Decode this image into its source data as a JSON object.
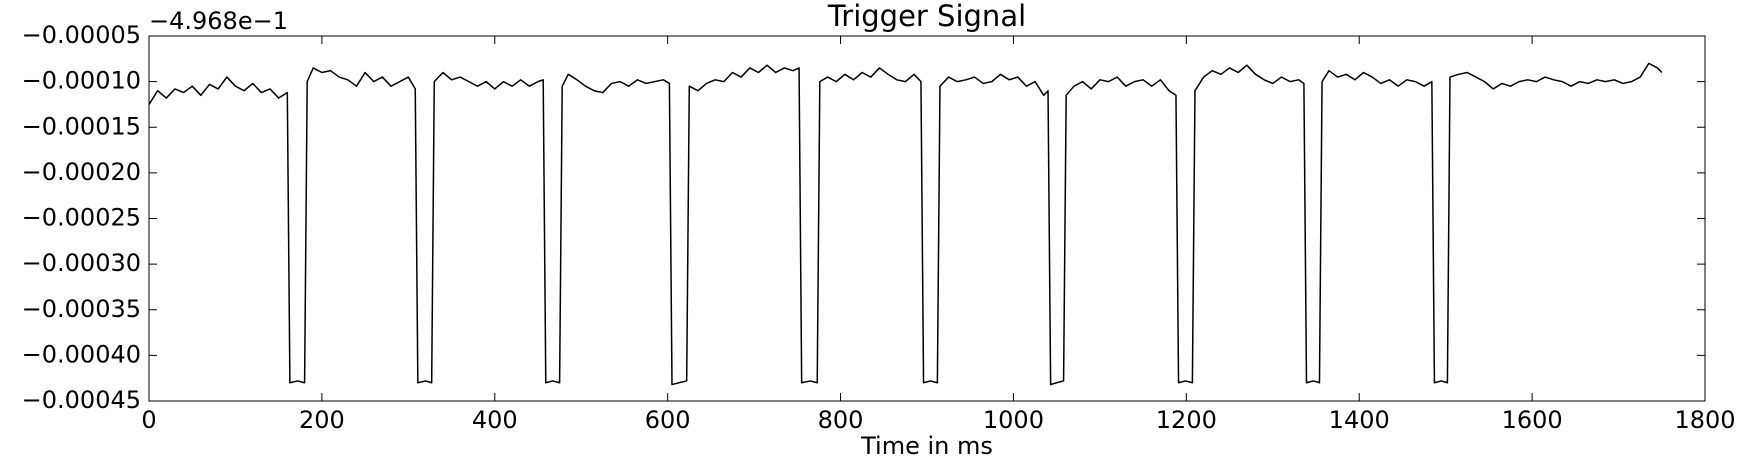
{
  "chart_data": {
    "type": "line",
    "title": "Trigger Signal",
    "xlabel": "Time in ms",
    "offset_label": "−4.968e−1",
    "color": "#000000",
    "xlim": [
      0,
      1800
    ],
    "xticks": [
      0,
      200,
      400,
      600,
      800,
      1000,
      1200,
      1400,
      1600,
      1800
    ],
    "ylim": [
      -0.00045,
      -5e-05
    ],
    "yticks": [
      {
        "value": -0.00045,
        "label": "−0.00045"
      },
      {
        "value": -0.0004,
        "label": "−0.00040"
      },
      {
        "value": -0.00035,
        "label": "−0.00035"
      },
      {
        "value": -0.0003,
        "label": "−0.00030"
      },
      {
        "value": -0.00025,
        "label": "−0.00025"
      },
      {
        "value": -0.0002,
        "label": "−0.00020"
      },
      {
        "value": -0.00015,
        "label": "−0.00015"
      },
      {
        "value": -0.0001,
        "label": "−0.00010"
      },
      {
        "value": -5e-05,
        "label": "−0.00005"
      }
    ],
    "x": [
      0,
      10,
      20,
      30,
      40,
      50,
      60,
      70,
      80,
      90,
      100,
      110,
      120,
      130,
      140,
      150,
      160,
      163,
      172,
      180,
      183,
      190,
      200,
      210,
      220,
      230,
      240,
      250,
      260,
      270,
      280,
      290,
      300,
      308,
      311,
      320,
      327,
      330,
      340,
      350,
      360,
      370,
      380,
      390,
      400,
      410,
      420,
      430,
      440,
      450,
      456,
      459,
      467,
      475,
      478,
      485,
      495,
      505,
      515,
      525,
      535,
      545,
      555,
      565,
      575,
      585,
      595,
      602,
      605,
      613,
      622,
      625,
      635,
      645,
      655,
      665,
      675,
      685,
      695,
      705,
      715,
      725,
      735,
      745,
      752,
      755,
      765,
      773,
      776,
      785,
      795,
      805,
      815,
      825,
      835,
      845,
      855,
      865,
      875,
      885,
      893,
      896,
      904,
      912,
      915,
      925,
      935,
      945,
      955,
      965,
      975,
      985,
      995,
      1005,
      1015,
      1025,
      1035,
      1040,
      1043,
      1050,
      1058,
      1061,
      1070,
      1080,
      1090,
      1100,
      1110,
      1120,
      1130,
      1140,
      1150,
      1160,
      1170,
      1180,
      1188,
      1191,
      1199,
      1207,
      1210,
      1220,
      1230,
      1240,
      1250,
      1260,
      1270,
      1280,
      1290,
      1300,
      1310,
      1320,
      1330,
      1336,
      1339,
      1347,
      1354,
      1357,
      1365,
      1375,
      1385,
      1395,
      1405,
      1415,
      1425,
      1435,
      1445,
      1455,
      1465,
      1475,
      1484,
      1487,
      1495,
      1502,
      1505,
      1515,
      1525,
      1535,
      1545,
      1555,
      1565,
      1575,
      1585,
      1595,
      1605,
      1615,
      1625,
      1635,
      1645,
      1655,
      1665,
      1675,
      1685,
      1695,
      1705,
      1715,
      1725,
      1735,
      1745,
      1750
    ],
    "values": [
      -0.000125,
      -0.00011,
      -0.000118,
      -0.000108,
      -0.000112,
      -0.000105,
      -0.000115,
      -0.000103,
      -0.000108,
      -9.5e-05,
      -0.000105,
      -0.00011,
      -0.000102,
      -0.000112,
      -0.000108,
      -0.000118,
      -0.000112,
      -0.00043,
      -0.000428,
      -0.00043,
      -0.0001,
      -8.5e-05,
      -9e-05,
      -8.8e-05,
      -9.5e-05,
      -9.8e-05,
      -0.000105,
      -9e-05,
      -0.0001,
      -9.5e-05,
      -0.000105,
      -0.0001,
      -9.5e-05,
      -0.000108,
      -0.00043,
      -0.000428,
      -0.00043,
      -0.0001,
      -9e-05,
      -9.8e-05,
      -9.5e-05,
      -0.0001,
      -0.000105,
      -0.0001,
      -0.000108,
      -0.0001,
      -0.000105,
      -9.8e-05,
      -0.000105,
      -0.0001,
      -9.8e-05,
      -0.00043,
      -0.000428,
      -0.00043,
      -0.000105,
      -9.2e-05,
      -9.8e-05,
      -0.000105,
      -0.00011,
      -0.000112,
      -0.000102,
      -0.0001,
      -0.000105,
      -9.8e-05,
      -0.000102,
      -0.0001,
      -9.8e-05,
      -0.000102,
      -0.000432,
      -0.00043,
      -0.000428,
      -0.000105,
      -0.00011,
      -0.000102,
      -9.8e-05,
      -0.0001,
      -9e-05,
      -9.5e-05,
      -8.5e-05,
      -9e-05,
      -8.2e-05,
      -9e-05,
      -8.5e-05,
      -8.8e-05,
      -8.5e-05,
      -0.00043,
      -0.000428,
      -0.00043,
      -0.0001,
      -9.5e-05,
      -0.0001,
      -9.2e-05,
      -9.8e-05,
      -9e-05,
      -9.5e-05,
      -8.5e-05,
      -9.2e-05,
      -9.8e-05,
      -0.0001,
      -9.2e-05,
      -0.0001,
      -0.00043,
      -0.000428,
      -0.00043,
      -0.000105,
      -9.5e-05,
      -0.0001,
      -9.8e-05,
      -9.5e-05,
      -0.000102,
      -0.0001,
      -9.2e-05,
      -9.8e-05,
      -9.5e-05,
      -0.000105,
      -0.0001,
      -0.000115,
      -0.00011,
      -0.000432,
      -0.00043,
      -0.000428,
      -0.000115,
      -0.000105,
      -0.0001,
      -0.000108,
      -9.8e-05,
      -0.0001,
      -9.5e-05,
      -0.000105,
      -0.0001,
      -9.8e-05,
      -0.000105,
      -9.8e-05,
      -0.00011,
      -0.000115,
      -0.00043,
      -0.000428,
      -0.00043,
      -0.00011,
      -9.5e-05,
      -8.8e-05,
      -9.2e-05,
      -8.5e-05,
      -9e-05,
      -8.2e-05,
      -9.2e-05,
      -9.8e-05,
      -0.000102,
      -9.5e-05,
      -0.0001,
      -9.8e-05,
      -0.000102,
      -0.00043,
      -0.000428,
      -0.00043,
      -0.0001,
      -8.8e-05,
      -9.5e-05,
      -9.2e-05,
      -9.8e-05,
      -9e-05,
      -9.5e-05,
      -0.000102,
      -9.8e-05,
      -0.000105,
      -9.8e-05,
      -0.0001,
      -0.000105,
      -0.0001,
      -0.00043,
      -0.000428,
      -0.00043,
      -9.5e-05,
      -9.2e-05,
      -9e-05,
      -9.5e-05,
      -0.0001,
      -0.000108,
      -0.000102,
      -0.000105,
      -0.0001,
      -9.8e-05,
      -0.0001,
      -9.5e-05,
      -9.8e-05,
      -0.0001,
      -0.000105,
      -0.0001,
      -0.000102,
      -9.8e-05,
      -0.0001,
      -9.8e-05,
      -0.000102,
      -0.0001,
      -9.5e-05,
      -8e-05,
      -8.5e-05,
      -9e-05
    ]
  }
}
